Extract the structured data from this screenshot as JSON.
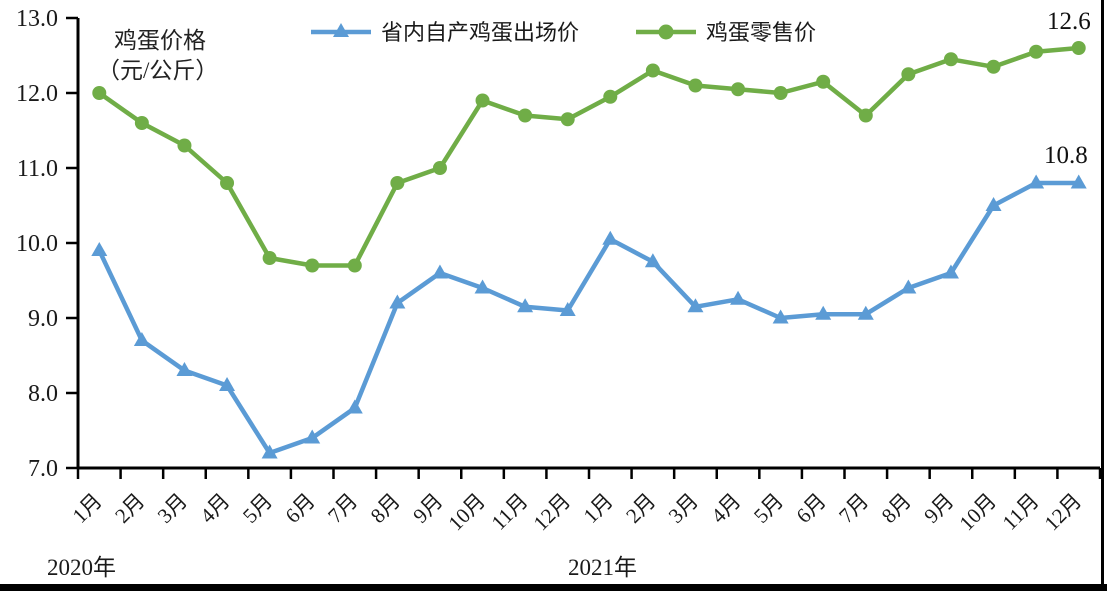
{
  "chart_data": {
    "type": "line",
    "title_lines": [
      "鸡蛋价格",
      "（元/公斤）"
    ],
    "ylim": [
      7.0,
      13.0
    ],
    "y_ticks": [
      "7.0",
      "8.0",
      "9.0",
      "10.0",
      "11.0",
      "12.0",
      "13.0"
    ],
    "grid": false,
    "legend_position": "top-center",
    "year_labels": [
      "2020年",
      "2021年"
    ],
    "categories": [
      "1月",
      "2月",
      "3月",
      "4月",
      "5月",
      "6月",
      "7月",
      "8月",
      "9月",
      "10月",
      "11月",
      "12月",
      "1月",
      "2月",
      "3月",
      "4月",
      "5月",
      "6月",
      "7月",
      "8月",
      "9月",
      "10月",
      "11月",
      "12月"
    ],
    "series": [
      {
        "name": "省内自产鸡蛋出场价",
        "color": "#5B9BD5",
        "marker": "triangle",
        "end_label": "10.8",
        "values": [
          9.9,
          8.7,
          8.3,
          8.1,
          7.2,
          7.4,
          7.8,
          9.2,
          9.6,
          9.4,
          9.15,
          9.1,
          10.05,
          9.75,
          9.15,
          9.25,
          9.0,
          9.05,
          9.05,
          9.4,
          9.6,
          10.5,
          10.8,
          10.8
        ]
      },
      {
        "name": "鸡蛋零售价",
        "color": "#70AD47",
        "marker": "circle",
        "end_label": "12.6",
        "values": [
          12.0,
          11.6,
          11.3,
          10.8,
          9.8,
          9.7,
          9.7,
          10.8,
          11.0,
          11.9,
          11.7,
          11.65,
          11.95,
          12.3,
          12.1,
          12.05,
          12.0,
          12.15,
          11.7,
          12.25,
          12.45,
          12.35,
          12.55,
          12.6
        ]
      }
    ]
  }
}
